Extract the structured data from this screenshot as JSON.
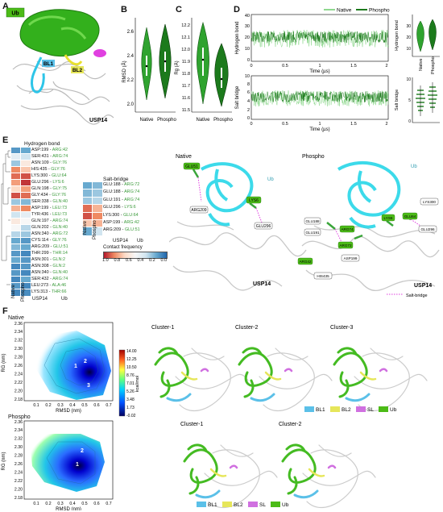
{
  "panels": {
    "A": {
      "letter": "A",
      "labels": {
        "ub": "Ub",
        "bl1": "BL1",
        "bl2": "BL2",
        "usp14": "USP14"
      }
    },
    "B": {
      "letter": "B",
      "ylabel": "RMSD (Å)",
      "xticks": [
        "Native",
        "Phospho"
      ],
      "yticks": [
        "2.0",
        "2.2",
        "2.4",
        "2.6"
      ]
    },
    "C": {
      "letter": "C",
      "ylabel": "Rg (Å)",
      "xticks": [
        "Native",
        "Phospho"
      ],
      "yticks": [
        "11.5",
        "11.6",
        "11.7",
        "11.8",
        "11.9",
        "12.0",
        "12.1",
        "12.2"
      ]
    },
    "D": {
      "letter": "D",
      "legend": [
        "Native",
        "Phospho"
      ],
      "hbond": {
        "ylabel": "Hydrogen bond",
        "xlabel": "Time (µs)",
        "yticks": [
          "0",
          "10",
          "20",
          "30",
          "40"
        ],
        "xticks": [
          "0",
          "0.5",
          "1",
          "1.5",
          "2"
        ]
      },
      "sbridge": {
        "ylabel": "Salt bridge",
        "xlabel": "Time (µs)",
        "yticks": [
          "0",
          "2",
          "4",
          "6",
          "8",
          "10"
        ],
        "xticks": [
          "0",
          "0.5",
          "1",
          "1.5",
          "2"
        ]
      },
      "violin_hb": {
        "ylabel": "Hydrogen bond",
        "yticks": [
          "10",
          "20",
          "30",
          "40"
        ],
        "xticks": [
          "Native",
          "Phospho"
        ]
      },
      "violin_sb": {
        "ylabel": "Salt bridge",
        "yticks": [
          "0",
          "5",
          "10"
        ],
        "xticks": [
          "Native",
          "Phospho"
        ]
      }
    },
    "E": {
      "letter": "E",
      "hbond_title": "Hydrogen bond",
      "sbridge_title": "Salt-bridge",
      "hbond_rows": [
        {
          "usp": "ASP:199",
          "ub": "ARG:42",
          "n": 0.85,
          "p": 0.8
        },
        {
          "usp": "SER:431",
          "ub": "ARG:74",
          "n": 0.55,
          "p": 0.6
        },
        {
          "usp": "ASN:109",
          "ub": "GLY:76",
          "n": 0.7,
          "p": 0.45
        },
        {
          "usp": "HIS:435",
          "ub": "GLY:76",
          "n": 0.2,
          "p": 0.35
        },
        {
          "usp": "LYS:300",
          "ub": "GLU:64",
          "n": 0.15,
          "p": 0.1
        },
        {
          "usp": "GLU:296",
          "ub": "LYS:6",
          "n": 0.25,
          "p": 0.05
        },
        {
          "usp": "GLN:198",
          "ub": "GLY:75",
          "n": 0.4,
          "p": 0.25
        },
        {
          "usp": "GLY:434",
          "ub": "GLY:76",
          "n": 0.1,
          "p": 0.15
        },
        {
          "usp": "SER:338",
          "ub": "GLN:40",
          "n": 0.7,
          "p": 0.75
        },
        {
          "usp": "ASP:199",
          "ub": "LEU:73",
          "n": 0.3,
          "p": 0.2
        },
        {
          "usp": "TYR:436",
          "ub": "LEU:73",
          "n": 0.6,
          "p": 0.55
        },
        {
          "usp": "GLN:197",
          "ub": "ARG:74",
          "n": 0.45,
          "p": 0.5
        },
        {
          "usp": "GLN:202",
          "ub": "GLN:40",
          "n": 0.5,
          "p": 0.65
        },
        {
          "usp": "ASN:340",
          "ub": "ARG:72",
          "n": 0.65,
          "p": 0.7
        },
        {
          "usp": "CYS:114",
          "ub": "GLY:76",
          "n": 0.8,
          "p": 0.85
        },
        {
          "usp": "ARG:209",
          "ub": "GLU:51",
          "n": 0.75,
          "p": 0.8
        },
        {
          "usp": "THR:299",
          "ub": "THR:14",
          "n": 0.85,
          "p": 0.9
        },
        {
          "usp": "ASN:301",
          "ub": "GLN:2",
          "n": 0.8,
          "p": 0.85
        },
        {
          "usp": "ASN:308",
          "ub": "GLN:2",
          "n": 0.9,
          "p": 0.85
        },
        {
          "usp": "ASN:340",
          "ub": "GLN:40",
          "n": 0.85,
          "p": 0.9
        },
        {
          "usp": "SER:432",
          "ub": "ARG:74",
          "n": 0.9,
          "p": 0.8
        },
        {
          "usp": "LEU:273",
          "ub": "ALA:46",
          "n": 0.85,
          "p": 0.9
        },
        {
          "usp": "LYS:313",
          "ub": "THR:66",
          "n": 0.9,
          "p": 0.88
        }
      ],
      "sbridge_rows": [
        {
          "usp": "GLU:188",
          "ub": "ARG:72",
          "n": 0.8,
          "p": 0.75
        },
        {
          "usp": "GLU:188",
          "ub": "ARG:74",
          "n": 0.75,
          "p": 0.7
        },
        {
          "usp": "GLU:191",
          "ub": "ARG:74",
          "n": 0.7,
          "p": 0.65
        },
        {
          "usp": "GLU:296",
          "ub": "LYS:6",
          "n": 0.15,
          "p": 0.3
        },
        {
          "usp": "LYS:300",
          "ub": "GLU:64",
          "n": 0.1,
          "p": 0.2
        },
        {
          "usp": "ASP:199",
          "ub": "ARG:42",
          "n": 0.35,
          "p": 0.3
        },
        {
          "usp": "ARG:209",
          "ub": "GLU:51",
          "n": 0.8,
          "p": 0.6
        }
      ],
      "col_labels": [
        "Native",
        "Phospho"
      ],
      "group_labels": {
        "usp": "USP14",
        "ub": "Ub"
      },
      "colorbar_title": "Contact frequency",
      "colorbar_ticks": [
        "1.0",
        "0.8",
        "0.6",
        "0.4",
        "0.2",
        "0.0"
      ],
      "struct_titles": {
        "native": "Native",
        "phospho": "Phospho"
      },
      "struct_labels_native": [
        "GLU51",
        "ARG209",
        "LYS6",
        "GLU296",
        "Ub",
        "USP14"
      ],
      "struct_labels_phospho": [
        "GLU188",
        "GLU191",
        "ARG74",
        "ARG72",
        "LYS6",
        "LYS300",
        "GLU296",
        "GLU64",
        "ASP199",
        "HIS435",
        "ARG42",
        "Ub",
        "USP14"
      ],
      "salt_bridge_legend": "Salt-bridge"
    },
    "F": {
      "letter": "F",
      "native_title": "Native",
      "phospho_title": "Phospho",
      "ylabel": "RG (nm)",
      "xlabel": "RMSD (nm)",
      "yticks_native": [
        "2.18",
        "2.20",
        "2.22",
        "2.24",
        "2.26",
        "2.28",
        "2.30",
        "2.32",
        "2.34",
        "2.36"
      ],
      "yticks_phospho": [
        "2.18",
        "2.20",
        "2.22",
        "2.24",
        "2.26",
        "2.28",
        "2.30",
        "2.32",
        "2.34",
        "2.36"
      ],
      "xticks": [
        "0.1",
        "0.2",
        "0.3",
        "0.4",
        "0.5",
        "0.6",
        "0.7"
      ],
      "colorbar_unit": "kcal/mol",
      "colorbar_ticks": [
        "14.00",
        "12.25",
        "10.50",
        "8.76",
        "7.01",
        "5.26",
        "3.48",
        "1.73",
        "-0.02"
      ],
      "native_minima": [
        "1",
        "2",
        "3"
      ],
      "phospho_minima": [
        "1",
        "2"
      ],
      "native_clusters": [
        "Cluster-1",
        "Cluster-2",
        "Cluster-3"
      ],
      "phospho_clusters": [
        "Cluster-1",
        "Cluster-2"
      ],
      "legend": [
        {
          "label": "BL1",
          "color": "#5bc0e8"
        },
        {
          "label": "BL2",
          "color": "#e6e65a"
        },
        {
          "label": "SL",
          "color": "#d070e0"
        },
        {
          "label": "Ub",
          "color": "#4cbb17"
        }
      ]
    }
  }
}
